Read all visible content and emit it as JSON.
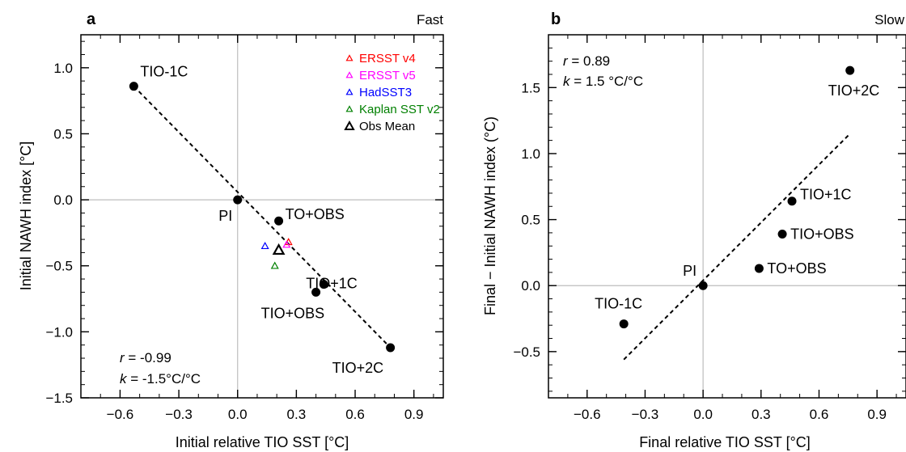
{
  "chart_data": [
    {
      "type": "scatter",
      "panel": "a",
      "tag": "Fast",
      "xlabel": "Initial relative TIO SST [°C]",
      "ylabel": "Initial NAWH index [°C]",
      "xlim": [
        -0.8,
        1.05
      ],
      "ylim": [
        -1.5,
        1.25
      ],
      "xticks": [
        -0.6,
        -0.3,
        0.0,
        0.3,
        0.6,
        0.9
      ],
      "xtick_labels": [
        "−0.6",
        "−0.3",
        "0.0",
        "0.3",
        "0.6",
        "0.9"
      ],
      "yticks": [
        -1.5,
        -1.0,
        -0.5,
        0.0,
        0.5,
        1.0
      ],
      "ytick_labels": [
        "−1.5",
        "−1.0",
        "−0.5",
        "0.0",
        "0.5",
        "1.0"
      ],
      "grid": "zero lines",
      "points": [
        {
          "label": "TIO-1C",
          "x": -0.53,
          "y": 0.86
        },
        {
          "label": "PI",
          "x": 0.0,
          "y": 0.0
        },
        {
          "label": "TO+OBS",
          "x": 0.21,
          "y": -0.16
        },
        {
          "label": "TIO+1C",
          "x": 0.44,
          "y": -0.64
        },
        {
          "label": "TIO+OBS",
          "x": 0.4,
          "y": -0.7
        },
        {
          "label": "TIO+2C",
          "x": 0.78,
          "y": -1.12
        }
      ],
      "obs_points": [
        {
          "name": "ERSST v4",
          "x": 0.26,
          "y": -0.32,
          "color": "#ff0000"
        },
        {
          "name": "ERSST v5",
          "x": 0.25,
          "y": -0.34,
          "color": "#ff00ff"
        },
        {
          "name": "HadSST3",
          "x": 0.14,
          "y": -0.35,
          "color": "#0000ff"
        },
        {
          "name": "Kaplan SST v2",
          "x": 0.19,
          "y": -0.5,
          "color": "#008000"
        },
        {
          "name": "Obs Mean",
          "x": 0.21,
          "y": -0.38,
          "color": "#000000"
        }
      ],
      "fit_line": {
        "x0": -0.53,
        "y0": 0.86,
        "x1": 0.78,
        "y1": -1.12
      },
      "stats": {
        "r_sym": "r",
        "r_value": " = -0.99",
        "k_sym": "k",
        "k_value": " = -1.5°C/°C"
      },
      "legend_position": "top-right"
    },
    {
      "type": "scatter",
      "panel": "b",
      "tag": "Slow",
      "xlabel": "Final relative TIO SST [°C]",
      "ylabel": "Final − Initial NAWH index (°C)",
      "xlim": [
        -0.8,
        1.05
      ],
      "ylim": [
        -0.85,
        1.9
      ],
      "xticks": [
        -0.6,
        -0.3,
        0.0,
        0.3,
        0.6,
        0.9
      ],
      "xtick_labels": [
        "−0.6",
        "−0.3",
        "0.0",
        "0.3",
        "0.6",
        "0.9"
      ],
      "yticks": [
        -0.5,
        0.0,
        0.5,
        1.0,
        1.5
      ],
      "ytick_labels": [
        "−0.5",
        "0.0",
        "0.5",
        "1.0",
        "1.5"
      ],
      "grid": "zero lines",
      "points": [
        {
          "label": "TIO-1C",
          "x": -0.41,
          "y": -0.29
        },
        {
          "label": "PI",
          "x": 0.0,
          "y": 0.0
        },
        {
          "label": "TO+OBS",
          "x": 0.29,
          "y": 0.13
        },
        {
          "label": "TIO+OBS",
          "x": 0.41,
          "y": 0.39
        },
        {
          "label": "TIO+1C",
          "x": 0.46,
          "y": 0.64
        },
        {
          "label": "TIO+2C",
          "x": 0.76,
          "y": 1.63
        }
      ],
      "fit_line": {
        "x0": -0.41,
        "y0": -0.56,
        "x1": 0.76,
        "y1": 1.15
      },
      "stats": {
        "r_sym": "r",
        "r_value": " = 0.89",
        "k_sym": "k",
        "k_value": " = 1.5 °C/°C"
      }
    }
  ]
}
